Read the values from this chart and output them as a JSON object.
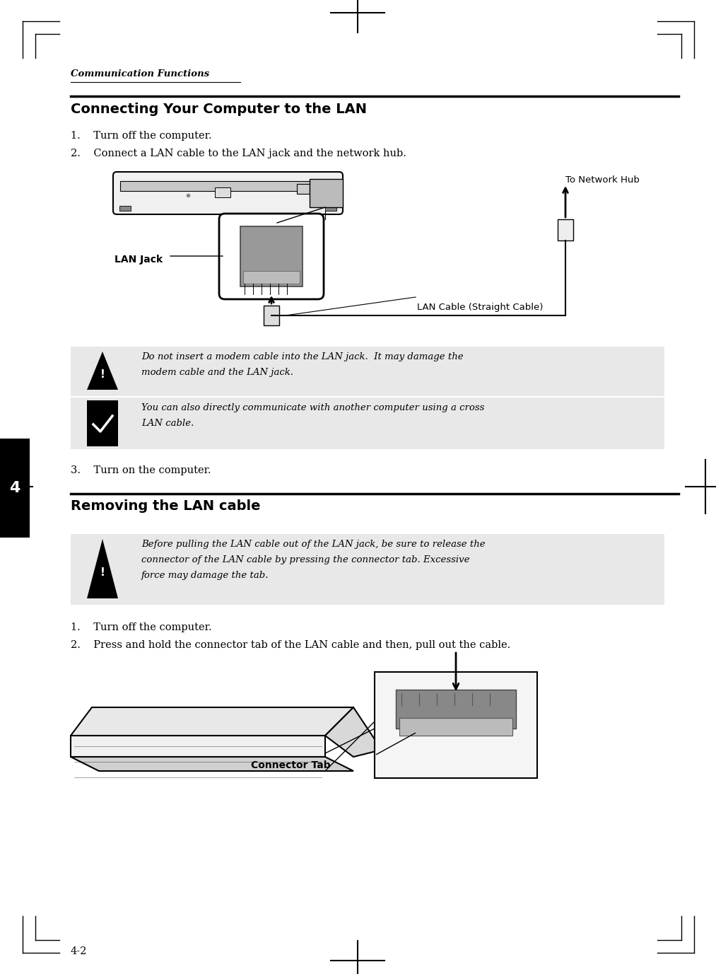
{
  "bg_color": "#ffffff",
  "page_width": 10.13,
  "page_height": 13.77,
  "dpi": 100,
  "header_text": "Communication Functions",
  "section1_title": "Connecting Your Computer to the LAN",
  "step1_1": "1.    Turn off the computer.",
  "step1_2": "2.    Connect a LAN cable to the LAN jack and the network hub.",
  "step1_3": "3.    Turn on the computer.",
  "warning1_line1": "Do not insert a modem cable into the LAN jack.  It may damage the",
  "warning1_line2": "modem cable and the LAN jack.",
  "note1_line1": "You can also directly communicate with another computer using a cross",
  "note1_line2": "LAN cable.",
  "section2_title": "Removing the LAN cable",
  "warning2_line1": "Before pulling the LAN cable out of the LAN jack, be sure to release the",
  "warning2_line2": "connector of the LAN cable by pressing the connector tab. Excessive",
  "warning2_line3": "force may damage the tab.",
  "step2_1": "1.    Turn off the computer.",
  "step2_2": "2.    Press and hold the connector tab of the LAN cable and then, pull out the cable.",
  "label_lan_jack": "LAN Jack",
  "label_to_network_hub": "To Network Hub",
  "label_lan_cable": "LAN Cable (Straight Cable)",
  "label_connector_tab": "Connector Tab",
  "page_num": "4-2",
  "chapter_num": "4",
  "gray_box_color": "#e8e8e8",
  "light_gray": "#d0d0d0",
  "mid_gray": "#888888",
  "dark_gray": "#555555"
}
